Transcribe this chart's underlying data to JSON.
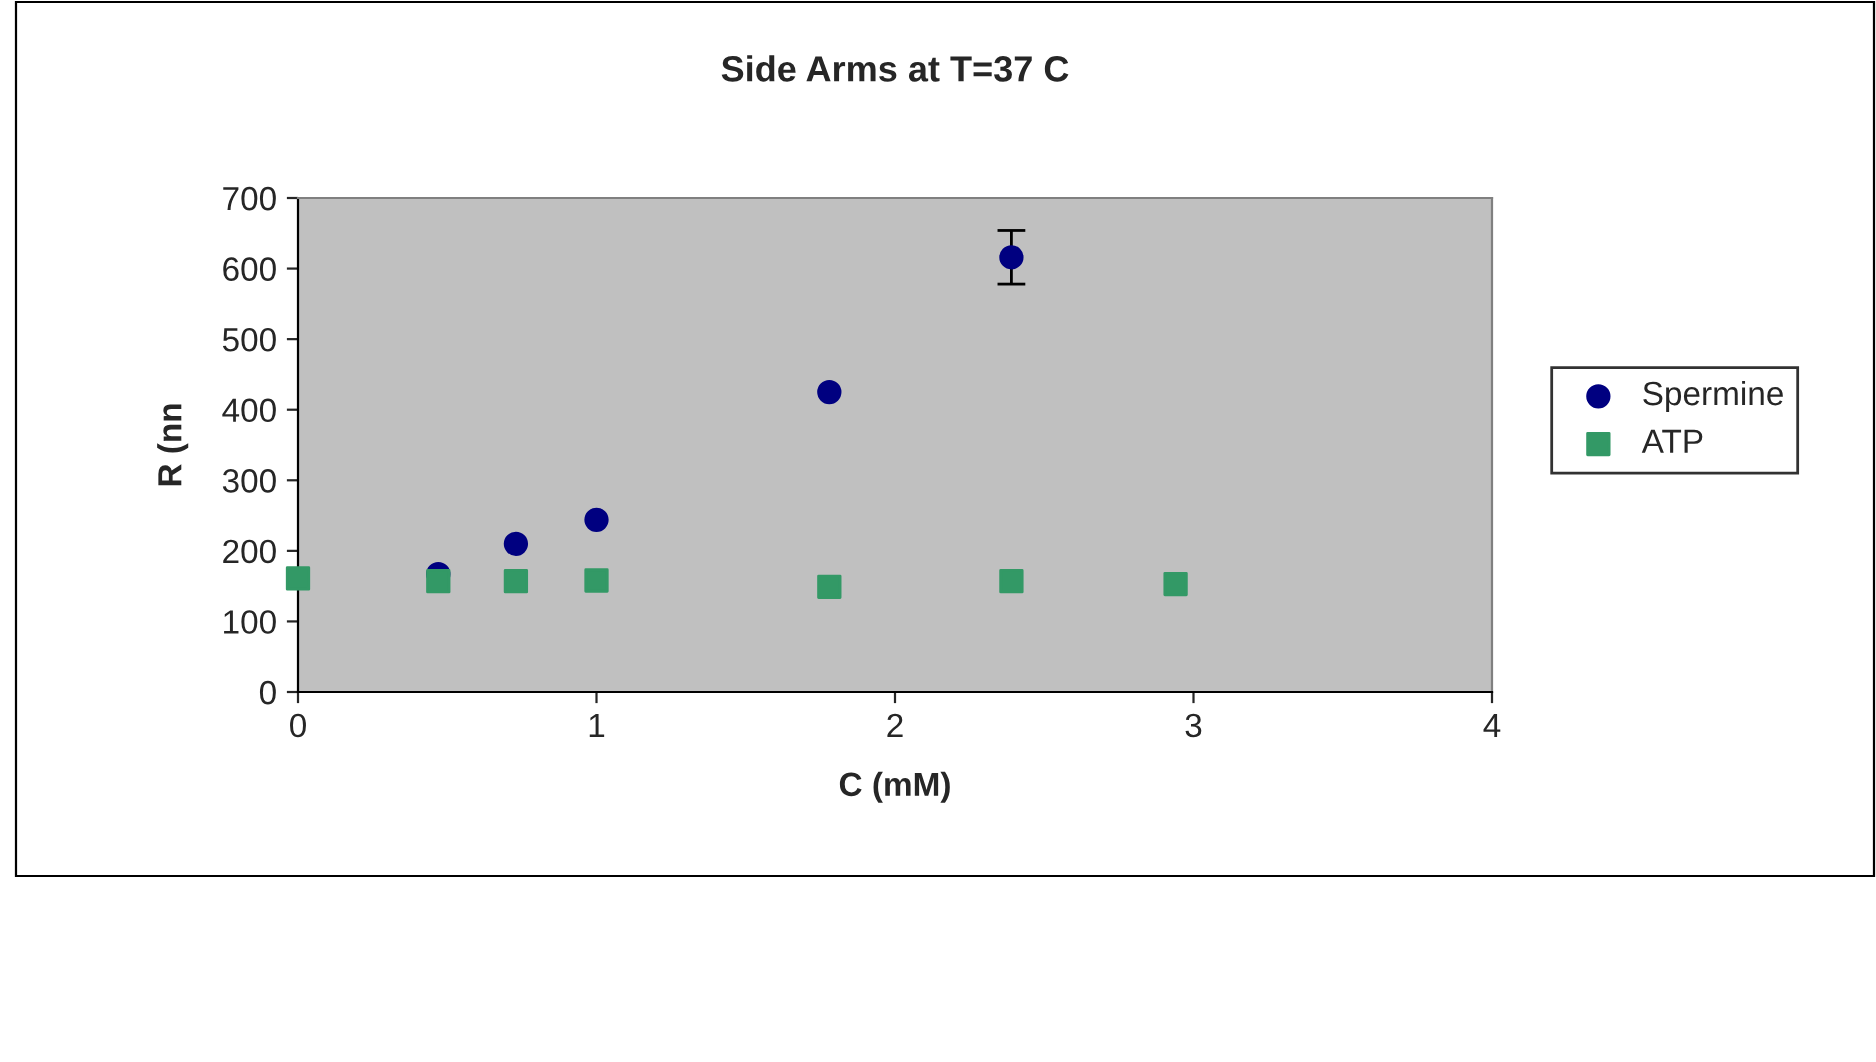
{
  "chart_data": {
    "type": "scatter",
    "title": "Side Arms at T=37 C",
    "xlabel": "C (mM)",
    "ylabel": "R (nn",
    "xlim": [
      0,
      4
    ],
    "xticks": [
      0,
      1,
      2,
      3,
      4
    ],
    "ylim": [
      0,
      700
    ],
    "yticks": [
      0,
      100,
      200,
      300,
      400,
      500,
      600,
      700
    ],
    "grid": false,
    "legend": "right",
    "series": [
      {
        "name": "Spermine",
        "color": "#000080",
        "marker": "circle",
        "x": [
          0.47,
          0.73,
          1.0,
          1.78,
          2.39
        ],
        "values": [
          167,
          210,
          244,
          425,
          616
        ],
        "errors": [
          null,
          null,
          null,
          null,
          38
        ]
      },
      {
        "name": "ATP",
        "color": "#339966",
        "marker": "square",
        "x": [
          0,
          0.47,
          0.73,
          1.0,
          1.78,
          2.39,
          2.94
        ],
        "values": [
          161,
          157,
          157,
          158,
          149,
          157,
          153
        ]
      }
    ]
  }
}
